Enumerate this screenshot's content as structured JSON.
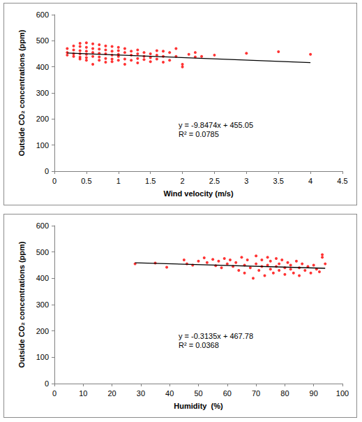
{
  "chart_data": [
    {
      "type": "scatter",
      "x_label": "Wind velocity (m/s)",
      "y_label": "Outside CO₂ concentrations (ppm)",
      "annotations": [
        "y = -9.8474x + 455.05",
        "R² = 0.0785"
      ],
      "xlim": [
        0,
        4.5
      ],
      "xticks": [
        0,
        0.5,
        1,
        1.5,
        2,
        2.5,
        3,
        3.5,
        4,
        4.5
      ],
      "ylim": [
        0,
        600
      ],
      "yticks": [
        0,
        100,
        200,
        300,
        400,
        500,
        600
      ],
      "grid": false,
      "series": [
        {
          "type": "scatter",
          "color": "#ff0000",
          "marker": "circle",
          "x": [
            0.2,
            0.2,
            0.2,
            0.3,
            0.3,
            0.3,
            0.3,
            0.4,
            0.4,
            0.4,
            0.4,
            0.4,
            0.4,
            0.5,
            0.5,
            0.5,
            0.5,
            0.5,
            0.5,
            0.6,
            0.6,
            0.6,
            0.6,
            0.6,
            0.7,
            0.7,
            0.7,
            0.7,
            0.7,
            0.8,
            0.8,
            0.8,
            0.8,
            0.8,
            0.9,
            0.9,
            0.9,
            0.9,
            0.9,
            1.0,
            1.0,
            1.0,
            1.0,
            1.0,
            1.1,
            1.1,
            1.1,
            1.1,
            1.2,
            1.2,
            1.2,
            1.3,
            1.3,
            1.3,
            1.3,
            1.4,
            1.4,
            1.4,
            1.5,
            1.5,
            1.5,
            1.6,
            1.6,
            1.6,
            1.7,
            1.7,
            1.7,
            1.8,
            1.8,
            1.9,
            1.9,
            2.0,
            2.0,
            2.1,
            2.2,
            2.2,
            2.3,
            2.5,
            3.0,
            3.5,
            4.0
          ],
          "values": [
            470,
            455,
            445,
            480,
            465,
            450,
            440,
            490,
            478,
            462,
            450,
            437,
            430,
            492,
            475,
            460,
            448,
            435,
            425,
            488,
            470,
            455,
            440,
            410,
            485,
            468,
            452,
            438,
            425,
            480,
            465,
            450,
            432,
            418,
            478,
            460,
            445,
            430,
            420,
            475,
            462,
            448,
            440,
            425,
            470,
            455,
            430,
            410,
            460,
            445,
            425,
            465,
            450,
            432,
            415,
            455,
            440,
            428,
            450,
            435,
            420,
            462,
            445,
            430,
            460,
            440,
            418,
            455,
            425,
            470,
            440,
            410,
            400,
            448,
            455,
            438,
            440,
            445,
            452,
            458,
            448
          ]
        },
        {
          "type": "line",
          "color": "#000000",
          "marker": "none",
          "line_style": "solid",
          "x": [
            0.2,
            4.0
          ],
          "values": [
            453,
            416
          ]
        }
      ]
    },
    {
      "type": "scatter",
      "x_label": "Humidity  (%)",
      "y_label": "Outside CO₂ concentrations (ppm)",
      "annotations": [
        "y = -0.3135x + 467.78",
        "R² = 0.0368"
      ],
      "xlim": [
        0,
        100
      ],
      "xticks": [
        0,
        10,
        20,
        30,
        40,
        50,
        60,
        70,
        80,
        90,
        100
      ],
      "ylim": [
        0,
        600
      ],
      "yticks": [
        0,
        100,
        200,
        300,
        400,
        500,
        600
      ],
      "grid": false,
      "series": [
        {
          "type": "scatter",
          "color": "#ff0000",
          "marker": "circle",
          "x": [
            28,
            35,
            39,
            45,
            46,
            48,
            50,
            52,
            53,
            55,
            56,
            57,
            58,
            59,
            60,
            61,
            62,
            63,
            64,
            65,
            66,
            66,
            67,
            68,
            69,
            70,
            70,
            71,
            72,
            72,
            73,
            74,
            74,
            75,
            75,
            76,
            77,
            77,
            78,
            78,
            79,
            80,
            80,
            81,
            82,
            82,
            83,
            84,
            85,
            85,
            86,
            87,
            88,
            89,
            90,
            91,
            92,
            93,
            93,
            94
          ],
          "values": [
            455,
            458,
            442,
            470,
            455,
            450,
            465,
            478,
            460,
            472,
            448,
            465,
            440,
            475,
            455,
            470,
            445,
            460,
            430,
            480,
            450,
            420,
            470,
            440,
            400,
            485,
            455,
            430,
            470,
            445,
            410,
            480,
            450,
            435,
            465,
            420,
            475,
            445,
            455,
            430,
            470,
            440,
            415,
            460,
            435,
            450,
            420,
            465,
            440,
            410,
            455,
            430,
            445,
            420,
            450,
            435,
            425,
            480,
            490,
            455
          ]
        },
        {
          "type": "line",
          "color": "#000000",
          "marker": "none",
          "line_style": "solid",
          "x": [
            28,
            94
          ],
          "values": [
            459,
            438
          ]
        }
      ]
    }
  ]
}
